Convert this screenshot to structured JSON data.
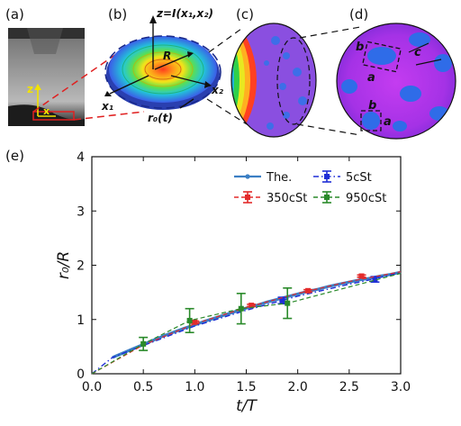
{
  "panels": {
    "a": {
      "label": "(a)",
      "axis_z": "z",
      "axis_x": "x"
    },
    "b": {
      "label": "(b)",
      "title": "z=I(x₁,x₂)",
      "radius": "R",
      "axis1": "x₁",
      "axis2": "x₂",
      "contact_radius": "r₀(t)"
    },
    "c": {
      "label": "(c)"
    },
    "d": {
      "label": "(d)",
      "box_width": "a",
      "box_height": "b",
      "spacing": "c"
    },
    "e": {
      "label": "(e)"
    }
  },
  "chart_data": {
    "type": "line",
    "xlabel": "t/T",
    "ylabel": "r₀/R",
    "xlim": [
      0.0,
      3.0
    ],
    "ylim": [
      0,
      4
    ],
    "xticks": [
      "0.0",
      "0.5",
      "1.0",
      "1.5",
      "2.0",
      "2.5",
      "3.0"
    ],
    "yticks": [
      "0",
      "1",
      "2",
      "3",
      "4"
    ],
    "legend_position": "top-right",
    "colors": {
      "theory": "#3b7fc4",
      "c5": "#1f2fd6",
      "c350": "#e32b2b",
      "c950": "#2a8a2a"
    },
    "series": [
      {
        "name": "The.",
        "style": "solid",
        "x": [
          0.2,
          0.3,
          0.4,
          0.5,
          0.6,
          0.7,
          0.8,
          0.9,
          1.0,
          1.1,
          1.2,
          1.3,
          1.4,
          1.5,
          1.6,
          1.7,
          1.8,
          1.9,
          2.0,
          2.1,
          2.2,
          2.3,
          2.4,
          2.5,
          2.6,
          2.7,
          2.8,
          2.9,
          3.0
        ],
        "y": [
          0.3,
          0.38,
          0.46,
          0.54,
          0.62,
          0.7,
          0.77,
          0.84,
          0.9,
          0.97,
          1.03,
          1.09,
          1.15,
          1.21,
          1.26,
          1.32,
          1.37,
          1.42,
          1.47,
          1.52,
          1.56,
          1.61,
          1.65,
          1.69,
          1.73,
          1.76,
          1.8,
          1.83,
          1.87
        ]
      },
      {
        "name": "5cSt",
        "style": "dash-dot",
        "x": [
          0.0,
          0.2,
          0.5,
          1.0,
          1.5,
          2.0,
          2.5,
          2.75,
          3.0
        ],
        "y": [
          0.0,
          0.3,
          0.52,
          0.88,
          1.17,
          1.43,
          1.65,
          1.75,
          1.87
        ],
        "markers": [
          {
            "x": 1.85,
            "y": 1.35,
            "err": 0.06
          },
          {
            "x": 2.75,
            "y": 1.74,
            "err": 0.05
          }
        ]
      },
      {
        "name": "350cSt",
        "style": "dashed",
        "x": [
          0.0,
          0.5,
          1.0,
          1.5,
          2.0,
          2.5,
          3.0
        ],
        "y": [
          0.0,
          0.53,
          0.92,
          1.22,
          1.48,
          1.7,
          1.88
        ],
        "markers": [
          {
            "x": 1.0,
            "y": 0.95,
            "err": 0.02
          },
          {
            "x": 1.55,
            "y": 1.26,
            "err": 0.02
          },
          {
            "x": 2.1,
            "y": 1.53,
            "err": 0.02
          },
          {
            "x": 2.62,
            "y": 1.8,
            "err": 0.02
          }
        ]
      },
      {
        "name": "950cSt",
        "style": "dashed",
        "x": [
          0.0,
          0.5,
          0.95,
          1.45,
          1.9,
          2.3,
          2.7,
          3.0
        ],
        "y": [
          0.0,
          0.55,
          0.98,
          1.2,
          1.3,
          1.5,
          1.7,
          1.85
        ],
        "markers": [
          {
            "x": 0.5,
            "y": 0.55,
            "err": 0.12
          },
          {
            "x": 0.95,
            "y": 0.98,
            "err": 0.22
          },
          {
            "x": 1.45,
            "y": 1.2,
            "err": 0.28
          },
          {
            "x": 1.9,
            "y": 1.3,
            "err": 0.28
          }
        ]
      }
    ]
  }
}
